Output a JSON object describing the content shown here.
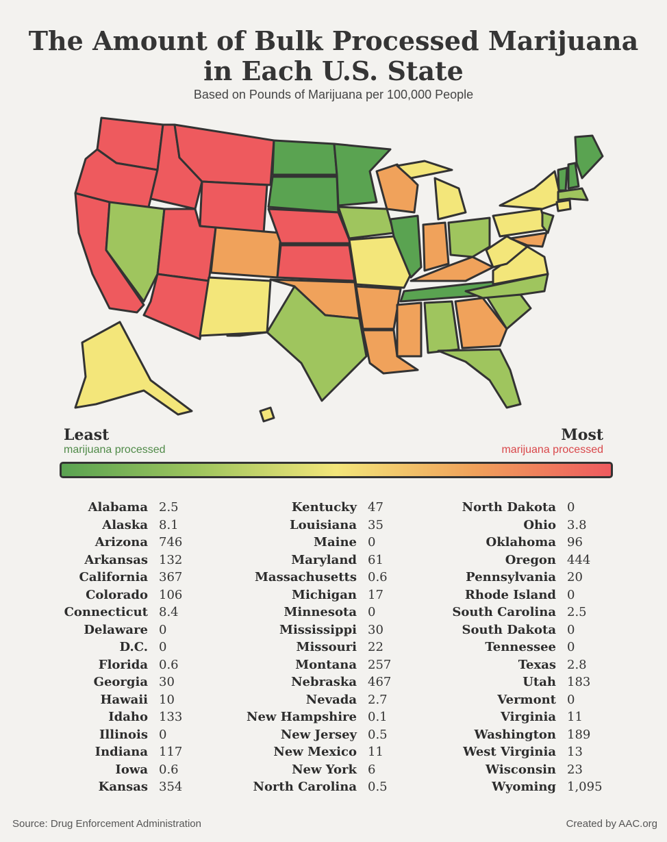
{
  "title_line1": "The Amount of Bulk Processed Marijuana",
  "title_line2": "in Each U.S. State",
  "subtitle": "Based on Pounds of Marijuana per 100,000 People",
  "legend": {
    "least": "Least",
    "least_sub": "marijuana processed",
    "most": "Most",
    "most_sub": "marijuana processed",
    "colors": {
      "least": "#5aa351",
      "mid_low": "#9fc55e",
      "mid": "#f3e67a",
      "mid_high": "#f0a25b",
      "most": "#ee5a5e"
    }
  },
  "states": [
    {
      "name": "Alabama",
      "value": "2.5"
    },
    {
      "name": "Alaska",
      "value": "8.1"
    },
    {
      "name": "Arizona",
      "value": "746"
    },
    {
      "name": "Arkansas",
      "value": "132"
    },
    {
      "name": "California",
      "value": "367"
    },
    {
      "name": "Colorado",
      "value": "106"
    },
    {
      "name": "Connecticut",
      "value": "8.4"
    },
    {
      "name": "Delaware",
      "value": "0"
    },
    {
      "name": "D.C.",
      "value": "0"
    },
    {
      "name": "Florida",
      "value": "0.6"
    },
    {
      "name": "Georgia",
      "value": "30"
    },
    {
      "name": "Hawaii",
      "value": "10"
    },
    {
      "name": "Idaho",
      "value": "133"
    },
    {
      "name": "Illinois",
      "value": "0"
    },
    {
      "name": "Indiana",
      "value": "117"
    },
    {
      "name": "Iowa",
      "value": "0.6"
    },
    {
      "name": "Kansas",
      "value": "354"
    },
    {
      "name": "Kentucky",
      "value": "47"
    },
    {
      "name": "Louisiana",
      "value": "35"
    },
    {
      "name": "Maine",
      "value": "0"
    },
    {
      "name": "Maryland",
      "value": "61"
    },
    {
      "name": "Massachusetts",
      "value": "0.6"
    },
    {
      "name": "Michigan",
      "value": "17"
    },
    {
      "name": "Minnesota",
      "value": "0"
    },
    {
      "name": "Mississippi",
      "value": "30"
    },
    {
      "name": "Missouri",
      "value": "22"
    },
    {
      "name": "Montana",
      "value": "257"
    },
    {
      "name": "Nebraska",
      "value": "467"
    },
    {
      "name": "Nevada",
      "value": "2.7"
    },
    {
      "name": "New Hampshire",
      "value": "0.1"
    },
    {
      "name": "New Jersey",
      "value": "0.5"
    },
    {
      "name": "New Mexico",
      "value": "11"
    },
    {
      "name": "New York",
      "value": "6"
    },
    {
      "name": "North Carolina",
      "value": "0.5"
    },
    {
      "name": "North Dakota",
      "value": "0"
    },
    {
      "name": "Ohio",
      "value": "3.8"
    },
    {
      "name": "Oklahoma",
      "value": "96"
    },
    {
      "name": "Oregon",
      "value": "444"
    },
    {
      "name": "Pennsylvania",
      "value": "20"
    },
    {
      "name": "Rhode Island",
      "value": "0"
    },
    {
      "name": "South Carolina",
      "value": "2.5"
    },
    {
      "name": "South Dakota",
      "value": "0"
    },
    {
      "name": "Tennessee",
      "value": "0"
    },
    {
      "name": "Texas",
      "value": "2.8"
    },
    {
      "name": "Utah",
      "value": "183"
    },
    {
      "name": "Vermont",
      "value": "0"
    },
    {
      "name": "Virginia",
      "value": "11"
    },
    {
      "name": "Washington",
      "value": "189"
    },
    {
      "name": "West Virginia",
      "value": "13"
    },
    {
      "name": "Wisconsin",
      "value": "23"
    },
    {
      "name": "Wyoming",
      "value": "1,095"
    }
  ],
  "footer": {
    "source": "Source: Drug Enforcement Administration",
    "credit": "Created by AAC.org"
  }
}
